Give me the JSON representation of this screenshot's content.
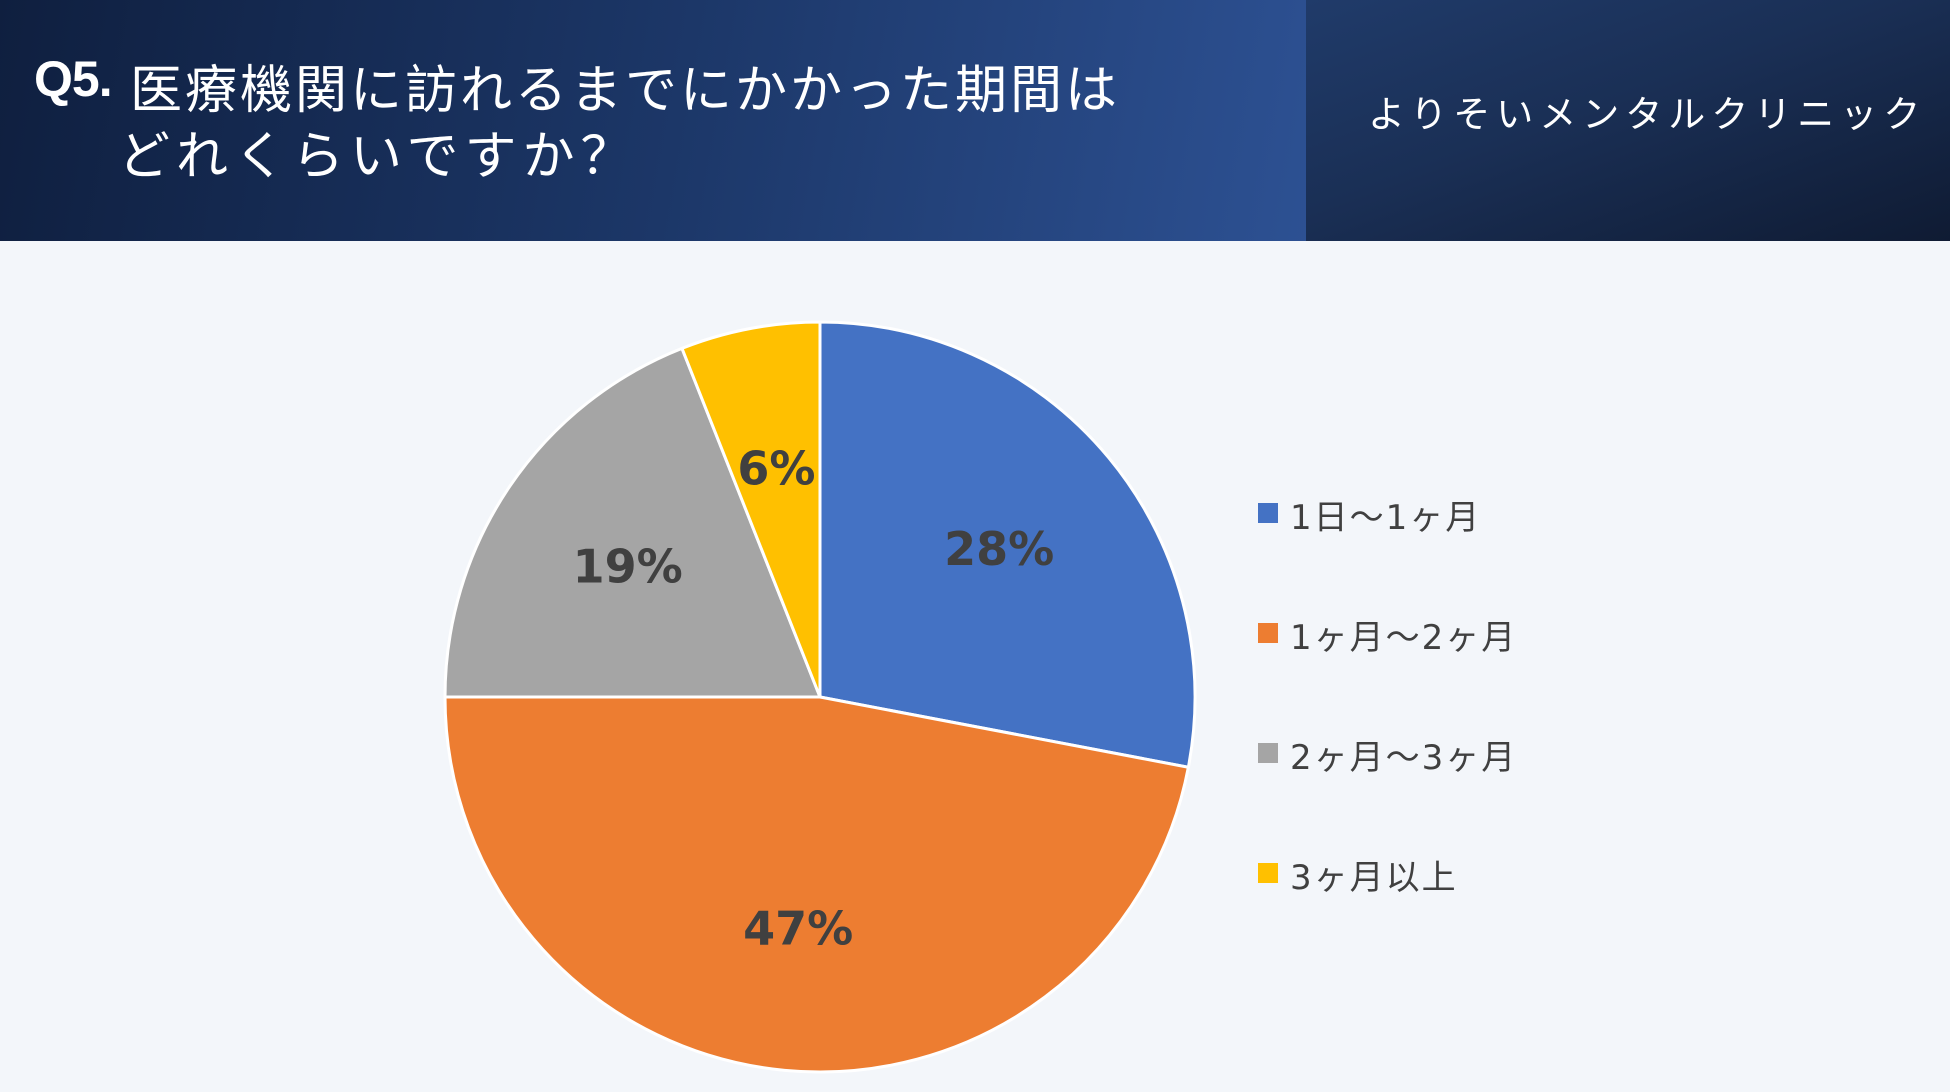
{
  "header": {
    "question_prefix": "Q5.",
    "question_line1": "医療機関に訪れるまでにかかった期間は",
    "question_line2": "どれくらいですか？",
    "clinic_name": "よりそいメンタルクリニック"
  },
  "chart_data": {
    "type": "pie",
    "title": "",
    "legend_position": "right",
    "start_angle": "12 o'clock",
    "direction": "clockwise",
    "slices": [
      {
        "label": "1日～1ヶ月",
        "value": 28,
        "display": "28%",
        "color": "#4472c4"
      },
      {
        "label": "1ヶ月～2ヶ月",
        "value": 47,
        "display": "47%",
        "color": "#ed7d31"
      },
      {
        "label": "2ヶ月～3ヶ月",
        "value": 19,
        "display": "19%",
        "color": "#a5a5a5"
      },
      {
        "label": "3ヶ月以上",
        "value": 6,
        "display": "6%",
        "color": "#ffc000"
      }
    ]
  },
  "colors": {
    "header_dark": "#1c3768",
    "background": "#f3f6fa",
    "label_text": "#404040"
  }
}
